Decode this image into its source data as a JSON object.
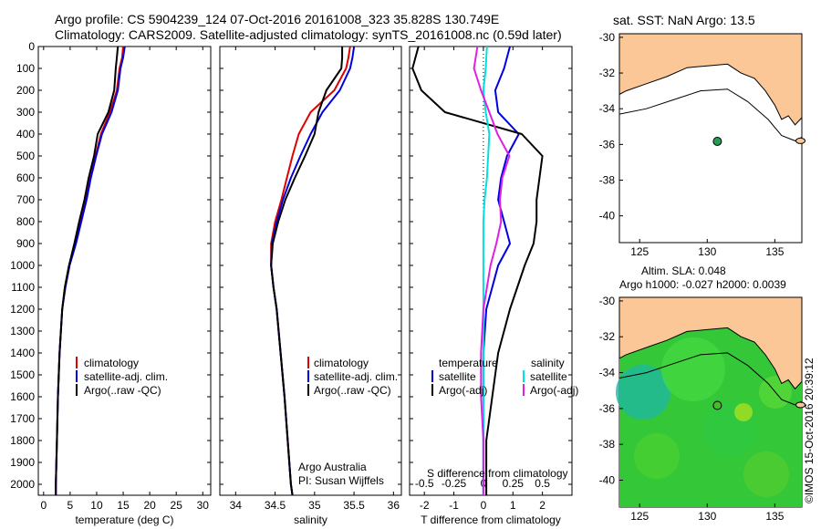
{
  "header": {
    "line1": "Argo profile: CS 5904239_124 07-Oct-2016 20161008_323 35.828S 130.749E",
    "line2": "Climatology: CARS2009. Satellite-adjusted climatology: synTS_20161008.nc (0.59d later)"
  },
  "colors": {
    "climatology": "#e00000",
    "satellite": "#0000e0",
    "argo": "#000000",
    "salinity_satellite": "#00e0e0",
    "salinity_argo": "#e020e0",
    "land": "#fcc796",
    "map_inside": "#f8f8f8"
  },
  "chart_data": [
    {
      "type": "line",
      "panel": "temperature",
      "xlabel": "temperature (deg C)",
      "ylabel": "",
      "xlim": [
        -1,
        31.5
      ],
      "ylim": [
        2050,
        0
      ],
      "xticks": [
        0,
        5,
        10,
        15,
        20,
        25,
        30
      ],
      "yticks": [
        0,
        100,
        200,
        300,
        400,
        500,
        600,
        700,
        800,
        900,
        1000,
        1100,
        1200,
        1300,
        1400,
        1500,
        1600,
        1700,
        1800,
        1900,
        2000
      ],
      "legend": [
        "climatology",
        "satellite-adj. clim.",
        "Argo(..raw -QC)"
      ],
      "legend_position": "lower-middle",
      "series": [
        {
          "name": "climatology",
          "color": "#e00000",
          "depth": [
            0,
            50,
            100,
            200,
            300,
            400,
            500,
            600,
            700,
            800,
            900,
            1000,
            1100,
            1200,
            1400,
            1600,
            1800,
            2000,
            2050
          ],
          "values": [
            15.0,
            14.8,
            14.3,
            13.8,
            12.5,
            10.8,
            9.8,
            8.8,
            8.0,
            7.0,
            6.0,
            4.8,
            4.0,
            3.5,
            3.0,
            2.7,
            2.5,
            2.3,
            2.3
          ]
        },
        {
          "name": "satellite-adj. clim.",
          "color": "#0000e0",
          "depth": [
            0,
            50,
            100,
            200,
            300,
            400,
            500,
            600,
            700,
            800,
            900,
            1000,
            1100,
            1200,
            1400,
            1600,
            1800,
            2000,
            2050
          ],
          "values": [
            15.3,
            15.0,
            14.5,
            14.0,
            12.8,
            11.0,
            9.9,
            8.9,
            8.1,
            7.1,
            6.1,
            4.9,
            4.1,
            3.5,
            3.0,
            2.7,
            2.5,
            2.3,
            2.3
          ]
        },
        {
          "name": "Argo(..raw -QC)",
          "color": "#000000",
          "depth": [
            0,
            50,
            100,
            200,
            300,
            400,
            500,
            600,
            700,
            800,
            900,
            1000,
            1100,
            1200,
            1400,
            1600,
            1800,
            2000,
            2050
          ],
          "values": [
            14.0,
            13.8,
            13.6,
            13.3,
            12.2,
            10.2,
            9.5,
            8.5,
            7.7,
            6.7,
            5.8,
            4.8,
            4.0,
            3.5,
            3.0,
            2.7,
            2.5,
            2.3,
            2.3
          ]
        }
      ]
    },
    {
      "type": "line",
      "panel": "salinity",
      "xlabel": "salinity",
      "xlim": [
        33.8,
        36.1
      ],
      "ylim": [
        2050,
        0
      ],
      "xticks": [
        34,
        34.5,
        35,
        35.5,
        36
      ],
      "legend": [
        "climatology",
        "satellite-adj. clim.",
        "Argo(..raw -QC)"
      ],
      "legend_position": "lower-middle",
      "annotations": [
        "Argo Australia",
        "PI: Susan Wijffels"
      ],
      "series": [
        {
          "name": "climatology",
          "color": "#e00000",
          "depth": [
            0,
            50,
            100,
            200,
            300,
            400,
            500,
            600,
            700,
            800,
            900,
            1000,
            1100,
            1200,
            1400,
            1600,
            1800,
            2000,
            2050
          ],
          "values": [
            35.45,
            35.43,
            35.4,
            35.25,
            34.95,
            34.8,
            34.72,
            34.65,
            34.58,
            34.5,
            34.45,
            34.45,
            34.48,
            34.52,
            34.57,
            34.62,
            34.66,
            34.7,
            34.72
          ]
        },
        {
          "name": "satellite-adj. clim.",
          "color": "#0000e0",
          "depth": [
            0,
            50,
            100,
            200,
            300,
            400,
            500,
            600,
            700,
            800,
            900,
            1000,
            1100,
            1200,
            1400,
            1600,
            1800,
            2000,
            2050
          ],
          "values": [
            35.5,
            35.48,
            35.45,
            35.32,
            35.1,
            34.95,
            34.82,
            34.7,
            34.6,
            34.52,
            34.46,
            34.45,
            34.48,
            34.52,
            34.57,
            34.62,
            34.66,
            34.7,
            34.72
          ]
        },
        {
          "name": "Argo(..raw -QC)",
          "color": "#000000",
          "depth": [
            0,
            50,
            100,
            200,
            300,
            400,
            500,
            600,
            700,
            800,
            900,
            1000,
            1100,
            1200,
            1400,
            1600,
            1800,
            2000,
            2050
          ],
          "values": [
            35.35,
            35.35,
            35.34,
            35.15,
            35.05,
            35.0,
            34.88,
            34.75,
            34.63,
            34.54,
            34.47,
            34.45,
            34.48,
            34.52,
            34.57,
            34.62,
            34.66,
            34.7,
            34.72
          ]
        }
      ]
    },
    {
      "type": "line",
      "panel": "difference",
      "xlabel": "T difference from climatology",
      "top_axis_label": "S difference from climatology",
      "xlim": [
        -2.5,
        3.0
      ],
      "ylim": [
        2050,
        0
      ],
      "xticks": [
        -2,
        -1,
        0,
        1,
        2
      ],
      "top_ticks": [
        "-0.5",
        "-0.25",
        "0",
        "0.25",
        "0.5"
      ],
      "legend": [
        "temperature",
        "satellite",
        "Argo(-adj)",
        "salinity",
        "satellite",
        "Argo(-adj)"
      ],
      "legend_position": "lower-middle",
      "series": [
        {
          "name": "temperature satellite",
          "color": "#0000e0",
          "depth": [
            0,
            100,
            200,
            300,
            400,
            500,
            600,
            700,
            800,
            900,
            1000,
            1200,
            1400,
            1600,
            1800,
            2000,
            2050
          ],
          "values": [
            0.9,
            0.7,
            0.4,
            0.5,
            1.2,
            0.8,
            0.6,
            0.5,
            0.7,
            0.9,
            0.5,
            0.1,
            0.0,
            0.0,
            0.0,
            0.0,
            0.0
          ]
        },
        {
          "name": "temperature Argo(-adj)",
          "color": "#000000",
          "depth": [
            0,
            100,
            200,
            300,
            400,
            500,
            600,
            700,
            800,
            900,
            1000,
            1200,
            1400,
            1600,
            1800,
            2000,
            2050
          ],
          "values": [
            -2.2,
            -2.4,
            -2.1,
            -1.3,
            1.3,
            2.0,
            1.9,
            1.8,
            1.8,
            1.7,
            1.4,
            0.9,
            0.5,
            0.3,
            0.1,
            0.1,
            0.1
          ]
        },
        {
          "name": "salinity satellite",
          "color": "#00e0e0",
          "depth": [
            0,
            100,
            200,
            300,
            400,
            500,
            600,
            700,
            800,
            900,
            1000,
            1200,
            1400,
            1600,
            1800,
            2000,
            2050
          ],
          "values": [
            0.03,
            0.02,
            0.0,
            0.02,
            0.05,
            0.04,
            0.03,
            0.01,
            0.0,
            0.0,
            0.0,
            0.0,
            0.0,
            0.0,
            0.0,
            0.0,
            0.0
          ]
        },
        {
          "name": "salinity Argo(-adj)",
          "color": "#e020e0",
          "depth": [
            0,
            100,
            200,
            300,
            400,
            500,
            600,
            700,
            800,
            900,
            1000,
            1200,
            1400,
            1600,
            1800,
            2000,
            2050
          ],
          "values": [
            -0.05,
            -0.08,
            -0.02,
            0.05,
            0.12,
            0.22,
            0.16,
            0.14,
            0.15,
            0.11,
            0.06,
            0.0,
            -0.02,
            -0.02,
            0.0,
            0.0,
            0.0
          ]
        }
      ]
    }
  ],
  "maps": [
    {
      "title": "sat. SST: NaN Argo: 13.5",
      "subtitle": "",
      "xticks": [
        "125",
        "130",
        "135"
      ],
      "yticks": [
        "-30",
        "-32",
        "-34",
        "-36",
        "-38",
        "-40"
      ],
      "lon_range": [
        123.5,
        137.0
      ],
      "lat_range": [
        -41.5,
        -29.8
      ],
      "marker": {
        "lon": 130.749,
        "lat": -35.828,
        "color": "#20a050"
      }
    },
    {
      "title": "Altim. SLA: 0.048",
      "subtitle": "Argo h1000: -0.027 h2000: 0.0039",
      "xticks": [
        "125",
        "130",
        "135"
      ],
      "yticks": [
        "-30",
        "-32",
        "-34",
        "-36",
        "-38",
        "-40"
      ],
      "lon_range": [
        123.5,
        137.0
      ],
      "lat_range": [
        -41.5,
        -29.8
      ],
      "marker": {
        "lon": 130.749,
        "lat": -35.828,
        "color": "#40c020"
      }
    }
  ],
  "footer": {
    "side_stamp": "©IMOS 15-Oct-2016 20:39:12"
  }
}
